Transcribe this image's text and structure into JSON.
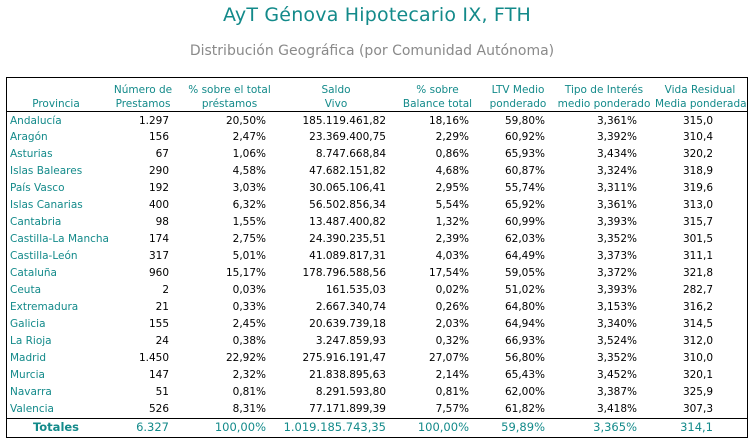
{
  "title": "AyT Génova Hipotecario IX, FTH",
  "subtitle": "Distribución Geográfica (por Comunidad Autónoma)",
  "headers": [
    {
      "l1": "",
      "l2": "Provincia"
    },
    {
      "l1": "Número de",
      "l2": "Prestamos"
    },
    {
      "l1": "% sobre el total",
      "l2": "préstamos"
    },
    {
      "l1": "Saldo",
      "l2": "Vivo"
    },
    {
      "l1": "% sobre",
      "l2": "Balance total"
    },
    {
      "l1": "LTV Medio",
      "l2": "ponderado"
    },
    {
      "l1": "Tipo de Interés",
      "l2": "medio ponderado"
    },
    {
      "l1": "Vida Residual",
      "l2": "Media ponderada"
    }
  ],
  "rows": [
    [
      "Andalucía",
      "1.297",
      "20,50%",
      "185.119.461,82",
      "18,16%",
      "59,80%",
      "3,361%",
      "315,0"
    ],
    [
      "Aragón",
      "156",
      "2,47%",
      "23.369.400,75",
      "2,29%",
      "60,92%",
      "3,392%",
      "310,4"
    ],
    [
      "Asturias",
      "67",
      "1,06%",
      "8.747.668,84",
      "0,86%",
      "65,93%",
      "3,434%",
      "320,2"
    ],
    [
      "Islas Baleares",
      "290",
      "4,58%",
      "47.682.151,82",
      "4,68%",
      "60,87%",
      "3,324%",
      "318,9"
    ],
    [
      "País Vasco",
      "192",
      "3,03%",
      "30.065.106,41",
      "2,95%",
      "55,74%",
      "3,311%",
      "319,6"
    ],
    [
      "Islas Canarias",
      "400",
      "6,32%",
      "56.502.856,34",
      "5,54%",
      "65,92%",
      "3,361%",
      "313,0"
    ],
    [
      "Cantabria",
      "98",
      "1,55%",
      "13.487.400,82",
      "1,32%",
      "60,99%",
      "3,393%",
      "315,7"
    ],
    [
      "Castilla-La Mancha",
      "174",
      "2,75%",
      "24.390.235,51",
      "2,39%",
      "62,03%",
      "3,352%",
      "301,5"
    ],
    [
      "Castilla-León",
      "317",
      "5,01%",
      "41.089.817,31",
      "4,03%",
      "64,49%",
      "3,373%",
      "311,1"
    ],
    [
      "Cataluña",
      "960",
      "15,17%",
      "178.796.588,56",
      "17,54%",
      "59,05%",
      "3,372%",
      "321,8"
    ],
    [
      "Ceuta",
      "2",
      "0,03%",
      "161.535,03",
      "0,02%",
      "51,02%",
      "3,393%",
      "282,7"
    ],
    [
      "Extremadura",
      "21",
      "0,33%",
      "2.667.340,74",
      "0,26%",
      "64,80%",
      "3,153%",
      "316,2"
    ],
    [
      "Galicia",
      "155",
      "2,45%",
      "20.639.739,18",
      "2,03%",
      "64,94%",
      "3,340%",
      "314,5"
    ],
    [
      "La Rioja",
      "24",
      "0,38%",
      "3.247.859,93",
      "0,32%",
      "66,93%",
      "3,524%",
      "312,0"
    ],
    [
      "Madrid",
      "1.450",
      "22,92%",
      "275.916.191,47",
      "27,07%",
      "56,80%",
      "3,352%",
      "310,0"
    ],
    [
      "Murcia",
      "147",
      "2,32%",
      "21.838.895,63",
      "2,14%",
      "65,43%",
      "3,452%",
      "320,1"
    ],
    [
      "Navarra",
      "51",
      "0,81%",
      "8.291.593,80",
      "0,81%",
      "62,00%",
      "3,387%",
      "325,9"
    ],
    [
      "Valencia",
      "526",
      "8,31%",
      "77.171.899,39",
      "7,57%",
      "61,82%",
      "3,418%",
      "307,3"
    ]
  ],
  "totals": [
    "Totales",
    "6.327",
    "100,00%",
    "1.019.185.743,35",
    "100,00%",
    "59,89%",
    "3,365%",
    "314,1"
  ],
  "colors": {
    "accent": "#138a8a",
    "subtitle": "#8a8a8a",
    "text": "#000000"
  }
}
